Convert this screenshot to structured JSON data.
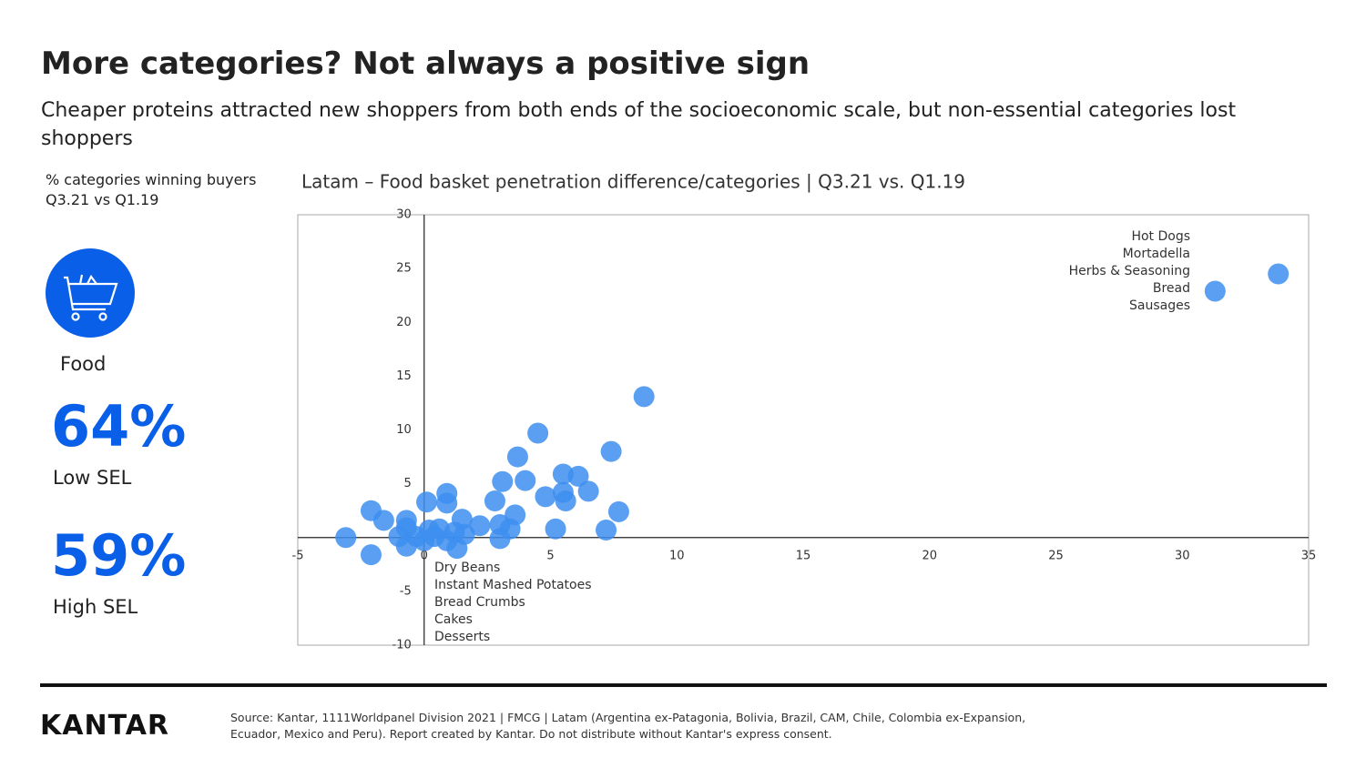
{
  "header": {
    "title": "More categories? Not always a positive sign",
    "subtitle": "Cheaper proteins attracted new shoppers from both ends of the socioeconomic scale, but non-essential categories lost shoppers"
  },
  "sidebar": {
    "note": [
      "% categories winning buyers",
      "Q3.21 vs Q1.19"
    ],
    "category": "Food",
    "stats": [
      {
        "value": "64%",
        "label": "Low SEL"
      },
      {
        "value": "59%",
        "label": "High SEL"
      }
    ]
  },
  "chart_data": {
    "type": "scatter",
    "title": "Latam – Food basket penetration difference/categories | Q3.21 vs. Q1.19",
    "color": "#3d8ef0",
    "x": [
      33.8,
      31.3,
      8.7,
      4.5,
      7.4,
      3.7,
      3.1,
      4.0,
      5.5,
      6.1,
      6.5,
      5.5,
      4.8,
      5.6,
      2.8,
      3.6,
      7.7,
      5.2,
      7.2,
      0.9,
      0.9,
      0.1,
      -2.1,
      -1.6,
      -3.1,
      -2.1,
      -0.7,
      -0.7,
      -1.0,
      -0.7,
      -0.3,
      0.2,
      0.6,
      0.9,
      1.2,
      1.3,
      1.5,
      1.6,
      2.2,
      3.0,
      3.0,
      3.4,
      0.0,
      0.4
    ],
    "values": [
      24.5,
      22.9,
      13.1,
      9.7,
      8.0,
      7.5,
      5.2,
      5.3,
      5.9,
      5.7,
      4.3,
      4.2,
      3.8,
      3.4,
      3.4,
      2.1,
      2.4,
      0.8,
      0.7,
      4.1,
      3.2,
      3.3,
      2.5,
      1.6,
      0,
      -1.6,
      1.6,
      0.9,
      0.1,
      -0.8,
      0.1,
      0.7,
      0.8,
      -0.3,
      0.5,
      -1.0,
      1.7,
      0.3,
      1.1,
      1.2,
      -0.1,
      0.8,
      -0.3,
      0.1
    ],
    "xlim": [
      -5,
      35
    ],
    "xticks": [
      -5,
      0,
      5,
      10,
      15,
      20,
      25,
      30,
      35
    ],
    "ylim": [
      -10,
      30
    ],
    "yticks": [
      -10,
      -5,
      0,
      5,
      10,
      15,
      20,
      25,
      30
    ],
    "grid": false,
    "annotations": [
      [
        "Hot Dogs",
        "Mortadella",
        "Herbs & Seasoning",
        "Bread",
        "Sausages"
      ],
      [
        "Dry Beans",
        "Instant Mashed Potatoes",
        "Bread Crumbs",
        "Cakes",
        "Desserts"
      ]
    ]
  },
  "footer": {
    "logo": "KANTAR",
    "source": [
      "Source: Kantar, 1111Worldpanel Division 2021 | FMCG | Latam (Argentina ex-Patagonia, Bolivia, Brazil, CAM, Chile, Colombia ex-Expansion,",
      "Ecuador, Mexico and Peru). Report created by Kantar. Do not distribute without Kantar's express consent."
    ]
  }
}
